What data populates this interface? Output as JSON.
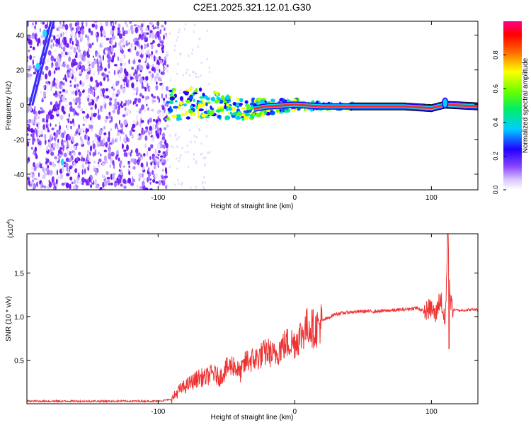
{
  "title": "C2E1.2025.321.12.01.G30",
  "chart_data": [
    {
      "type": "heatmap",
      "xlabel": "Height of straight line (km)",
      "ylabel": "Frequency (Hz)",
      "xlim": [
        -196,
        134
      ],
      "ylim": [
        -49,
        48
      ],
      "xticks": [
        -100,
        0,
        100
      ],
      "xtick_labels": [
        "-100",
        "0",
        "100"
      ],
      "yticks": [
        -40,
        -20,
        0,
        20,
        40
      ],
      "ytick_labels": [
        "-40",
        "-20",
        "0",
        "20",
        "40"
      ],
      "signal_track": {
        "x": [
          -93,
          -70,
          -50,
          -35,
          -20,
          0,
          20,
          50,
          80,
          100,
          110,
          134
        ],
        "y": [
          0,
          1,
          -1,
          -3,
          -1,
          0,
          -1,
          -1,
          -1,
          -2,
          0,
          -1
        ]
      },
      "noise_region_x": [
        -196,
        -93
      ],
      "colorbar": {
        "label": "Normalized spectral amplitude",
        "range": [
          0.0,
          1.0
        ],
        "ticks": [
          0.0,
          0.2,
          0.4,
          0.6,
          0.8
        ],
        "tick_labels": [
          "0.0",
          "0.2",
          "0.4",
          "0.6",
          "0.8"
        ]
      }
    },
    {
      "type": "line",
      "xlabel": "Height of straight line (km)",
      "ylabel": "SNR (10 * v/v)",
      "scale_label": "(x10",
      "scale_exp": "4",
      "scale_close": ")",
      "xlim": [
        -196,
        134
      ],
      "ylim": [
        0.0,
        1.95
      ],
      "xticks": [
        -100,
        0,
        100
      ],
      "xtick_labels": [
        "-100",
        "0",
        "100"
      ],
      "yticks": [
        0.5,
        1.0,
        1.5
      ],
      "ytick_labels": [
        "0.5",
        "1.0",
        "1.5"
      ],
      "series": [
        {
          "name": "SNR",
          "color": "#ee3333",
          "x": [
            -196,
            -150,
            -100,
            -90,
            -85,
            -80,
            -75,
            -70,
            -65,
            -60,
            -55,
            -50,
            -45,
            -40,
            -35,
            -30,
            -25,
            -20,
            -15,
            -10,
            -5,
            0,
            5,
            10,
            15,
            20,
            30,
            40,
            50,
            60,
            70,
            80,
            90,
            95,
            100,
            103,
            105,
            107,
            110,
            112,
            114,
            116,
            120,
            130,
            134
          ],
          "y": [
            0.03,
            0.03,
            0.03,
            0.05,
            0.15,
            0.2,
            0.25,
            0.3,
            0.3,
            0.35,
            0.3,
            0.4,
            0.45,
            0.35,
            0.5,
            0.5,
            0.55,
            0.6,
            0.55,
            0.65,
            0.7,
            0.7,
            0.8,
            0.9,
            0.85,
            0.95,
            1.03,
            1.05,
            1.06,
            1.06,
            1.07,
            1.08,
            1.1,
            1.05,
            1.1,
            1.0,
            1.15,
            1.2,
            0.9,
            1.9,
            1.15,
            1.08,
            1.07,
            1.08,
            1.08
          ]
        }
      ]
    }
  ]
}
